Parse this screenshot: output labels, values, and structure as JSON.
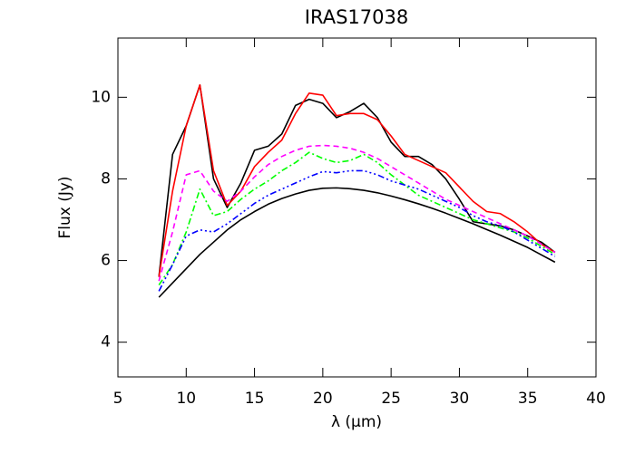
{
  "chart_data": {
    "type": "line",
    "title": "IRAS17038",
    "xlabel": "λ (μm)",
    "ylabel": "Flux (Jy)",
    "x": [
      8,
      9,
      10,
      11,
      12,
      13,
      14,
      15,
      16,
      17,
      18,
      19,
      20,
      21,
      22,
      23,
      24,
      25,
      26,
      27,
      28,
      29,
      30,
      31,
      32,
      33,
      34,
      35,
      36,
      37
    ],
    "xlim": [
      5,
      40
    ],
    "xticks": [
      5,
      10,
      15,
      20,
      25,
      30,
      35,
      40
    ],
    "ylim": [
      3.15,
      11.45
    ],
    "yticks": [
      4,
      6,
      8,
      10
    ],
    "series": [
      {
        "color": "#000000",
        "dash": "none",
        "values": [
          5.6,
          8.6,
          9.3,
          10.3,
          8.0,
          7.3,
          7.9,
          8.7,
          8.8,
          9.1,
          9.8,
          9.95,
          9.85,
          9.5,
          9.65,
          9.85,
          9.5,
          8.9,
          8.55,
          8.55,
          8.35,
          8.0,
          7.5,
          6.95,
          6.9,
          6.85,
          6.75,
          6.6,
          6.45,
          6.2
        ]
      },
      {
        "color": "#ff0000",
        "dash": "none",
        "values": [
          5.6,
          7.7,
          9.3,
          10.3,
          8.2,
          7.35,
          7.7,
          8.3,
          8.65,
          8.95,
          9.6,
          10.1,
          10.05,
          9.55,
          9.6,
          9.6,
          9.45,
          9.05,
          8.6,
          8.45,
          8.3,
          8.15,
          7.8,
          7.45,
          7.2,
          7.15,
          6.95,
          6.7,
          6.4,
          6.2
        ]
      },
      {
        "color": "#ff00ff",
        "dash": "6,4",
        "values": [
          5.5,
          6.7,
          8.1,
          8.2,
          7.7,
          7.45,
          7.7,
          8.05,
          8.35,
          8.55,
          8.7,
          8.8,
          8.82,
          8.8,
          8.75,
          8.65,
          8.5,
          8.3,
          8.1,
          7.9,
          7.7,
          7.5,
          7.35,
          7.2,
          7.05,
          6.9,
          6.75,
          6.6,
          6.4,
          6.2
        ]
      },
      {
        "color": "#00ff00",
        "dash": "7,3,2,3",
        "values": [
          5.4,
          5.9,
          6.7,
          7.75,
          7.1,
          7.2,
          7.5,
          7.75,
          7.95,
          8.2,
          8.4,
          8.65,
          8.5,
          8.4,
          8.45,
          8.6,
          8.4,
          8.1,
          7.85,
          7.6,
          7.45,
          7.3,
          7.15,
          7.0,
          6.9,
          6.8,
          6.7,
          6.55,
          6.35,
          6.15
        ]
      },
      {
        "color": "#0000ff",
        "dash": "7,3,2,3,2,3,2,3",
        "values": [
          5.25,
          5.9,
          6.6,
          6.75,
          6.7,
          6.9,
          7.15,
          7.4,
          7.6,
          7.75,
          7.9,
          8.05,
          8.18,
          8.15,
          8.2,
          8.2,
          8.1,
          7.95,
          7.85,
          7.75,
          7.6,
          7.45,
          7.3,
          7.1,
          6.95,
          6.85,
          6.7,
          6.5,
          6.3,
          6.1
        ]
      },
      {
        "color": "#000000",
        "dash": "none",
        "values": [
          5.1,
          5.45,
          5.8,
          6.15,
          6.45,
          6.75,
          7.0,
          7.2,
          7.38,
          7.52,
          7.63,
          7.72,
          7.77,
          7.78,
          7.76,
          7.72,
          7.66,
          7.58,
          7.49,
          7.39,
          7.28,
          7.16,
          7.03,
          6.9,
          6.76,
          6.62,
          6.47,
          6.32,
          6.14,
          5.96
        ]
      }
    ]
  }
}
